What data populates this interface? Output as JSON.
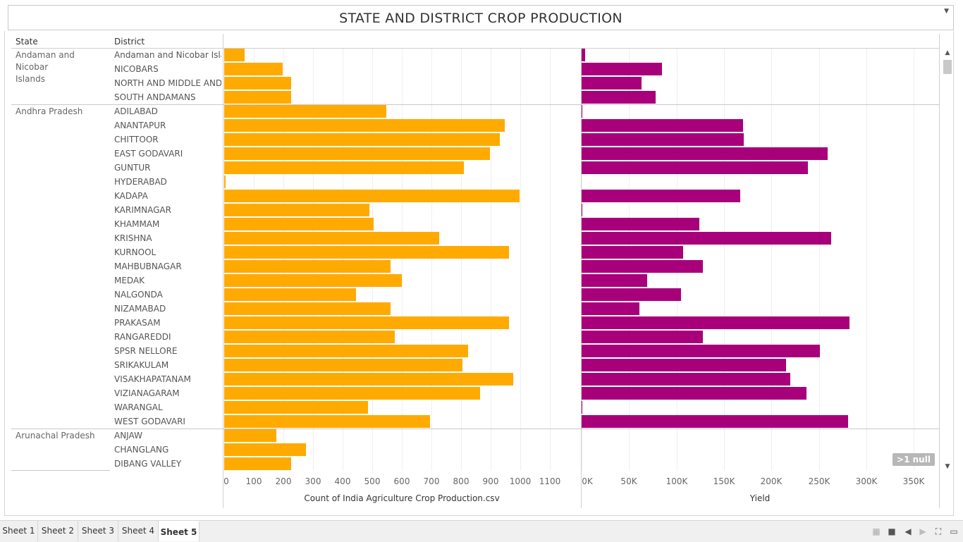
{
  "title": "STATE AND DISTRICT CROP PRODUCTION",
  "headers": {
    "state": "State",
    "district": "District"
  },
  "chart_data": {
    "type": "bar",
    "orientation": "horizontal",
    "rows": [
      {
        "state": "Andaman and Nicobar Islands",
        "district": "Andaman and Nicobar Isla..",
        "count": 70,
        "yield": 4000
      },
      {
        "state": "Andaman and Nicobar Islands",
        "district": "NICOBARS",
        "count": 197,
        "yield": 85000
      },
      {
        "state": "Andaman and Nicobar Islands",
        "district": "NORTH AND MIDDLE AND..",
        "count": 225,
        "yield": 63000
      },
      {
        "state": "Andaman and Nicobar Islands",
        "district": "SOUTH ANDAMANS",
        "count": 227,
        "yield": 78000
      },
      {
        "state": "Andhra Pradesh",
        "district": "ADILABAD",
        "count": 548,
        "yield": 1000
      },
      {
        "state": "Andhra Pradesh",
        "district": "ANANTAPUR",
        "count": 948,
        "yield": 170000
      },
      {
        "state": "Andhra Pradesh",
        "district": "CHITTOOR",
        "count": 930,
        "yield": 171000
      },
      {
        "state": "Andhra Pradesh",
        "district": "EAST GODAVARI",
        "count": 897,
        "yield": 259000
      },
      {
        "state": "Andhra Pradesh",
        "district": "GUNTUR",
        "count": 810,
        "yield": 238000
      },
      {
        "state": "Andhra Pradesh",
        "district": "HYDERABAD",
        "count": 5,
        "yield": 0
      },
      {
        "state": "Andhra Pradesh",
        "district": "KADAPA",
        "count": 998,
        "yield": 167000
      },
      {
        "state": "Andhra Pradesh",
        "district": "KARIMNAGAR",
        "count": 491,
        "yield": 1000
      },
      {
        "state": "Andhra Pradesh",
        "district": "KHAMMAM",
        "count": 505,
        "yield": 124000
      },
      {
        "state": "Andhra Pradesh",
        "district": "KRISHNA",
        "count": 726,
        "yield": 263000
      },
      {
        "state": "Andhra Pradesh",
        "district": "KURNOOL",
        "count": 961,
        "yield": 107000
      },
      {
        "state": "Andhra Pradesh",
        "district": "MAHBUBNAGAR",
        "count": 563,
        "yield": 128000
      },
      {
        "state": "Andhra Pradesh",
        "district": "MEDAK",
        "count": 600,
        "yield": 69000
      },
      {
        "state": "Andhra Pradesh",
        "district": "NALGONDA",
        "count": 446,
        "yield": 105000
      },
      {
        "state": "Andhra Pradesh",
        "district": "NIZAMABAD",
        "count": 563,
        "yield": 61000
      },
      {
        "state": "Andhra Pradesh",
        "district": "PRAKASAM",
        "count": 963,
        "yield": 282000
      },
      {
        "state": "Andhra Pradesh",
        "district": "RANGAREDDI",
        "count": 576,
        "yield": 128000
      },
      {
        "state": "Andhra Pradesh",
        "district": "SPSR NELLORE",
        "count": 824,
        "yield": 251000
      },
      {
        "state": "Andhra Pradesh",
        "district": "SRIKAKULAM",
        "count": 805,
        "yield": 215000
      },
      {
        "state": "Andhra Pradesh",
        "district": "VISAKHAPATANAM",
        "count": 977,
        "yield": 220000
      },
      {
        "state": "Andhra Pradesh",
        "district": "VIZIANAGARAM",
        "count": 864,
        "yield": 237000
      },
      {
        "state": "Andhra Pradesh",
        "district": "WARANGAL",
        "count": 486,
        "yield": 500
      },
      {
        "state": "Andhra Pradesh",
        "district": "WEST GODAVARI",
        "count": 696,
        "yield": 281000
      },
      {
        "state": "Arunachal Pradesh",
        "district": "ANJAW",
        "count": 177,
        "yield": 0
      },
      {
        "state": "Arunachal Pradesh",
        "district": "CHANGLANG",
        "count": 276,
        "yield": 0
      },
      {
        "state": "Arunachal Pradesh",
        "district": "DIBANG VALLEY",
        "count": 225,
        "yield": 0
      }
    ],
    "state_groups": [
      {
        "name": "Andaman and Nicobar\nIslands",
        "start": 0,
        "count": 4
      },
      {
        "name": "Andhra Pradesh",
        "start": 4,
        "count": 23
      },
      {
        "name": "Arunachal Pradesh",
        "start": 27,
        "count": 3
      }
    ],
    "series": [
      {
        "name": "Count of India Agriculture Crop Production.csv",
        "key": "count",
        "color": "#FFAA00",
        "ticks": [
          "0",
          "100",
          "200",
          "300",
          "400",
          "500",
          "600",
          "700",
          "800",
          "900",
          "1000",
          "1100"
        ],
        "xlim": [
          0,
          1200
        ]
      },
      {
        "name": "Yield",
        "key": "yield",
        "color": "#A8007A",
        "ticks": [
          "0K",
          "50K",
          "100K",
          "150K",
          "200K",
          "250K",
          "300K",
          "350K"
        ],
        "xlim": [
          0,
          375000
        ]
      }
    ],
    "xlabel_left": "Count of India Agriculture Crop Production.csv",
    "xlabel_right": "Yield",
    "grid": true
  },
  "null_badge": ">1 null",
  "tabs": [
    "Sheet 1",
    "Sheet 2",
    "Sheet 3",
    "Sheet 4",
    "Sheet 5"
  ],
  "active_tab": "Sheet 5",
  "colors": {
    "count_bar": "#FFAA00",
    "yield_bar": "#A8007A"
  },
  "toolbar_icons": [
    "grid-view-icon",
    "sheet-view-icon",
    "prev-icon",
    "next-icon",
    "fullscreen-icon",
    "present-icon"
  ]
}
